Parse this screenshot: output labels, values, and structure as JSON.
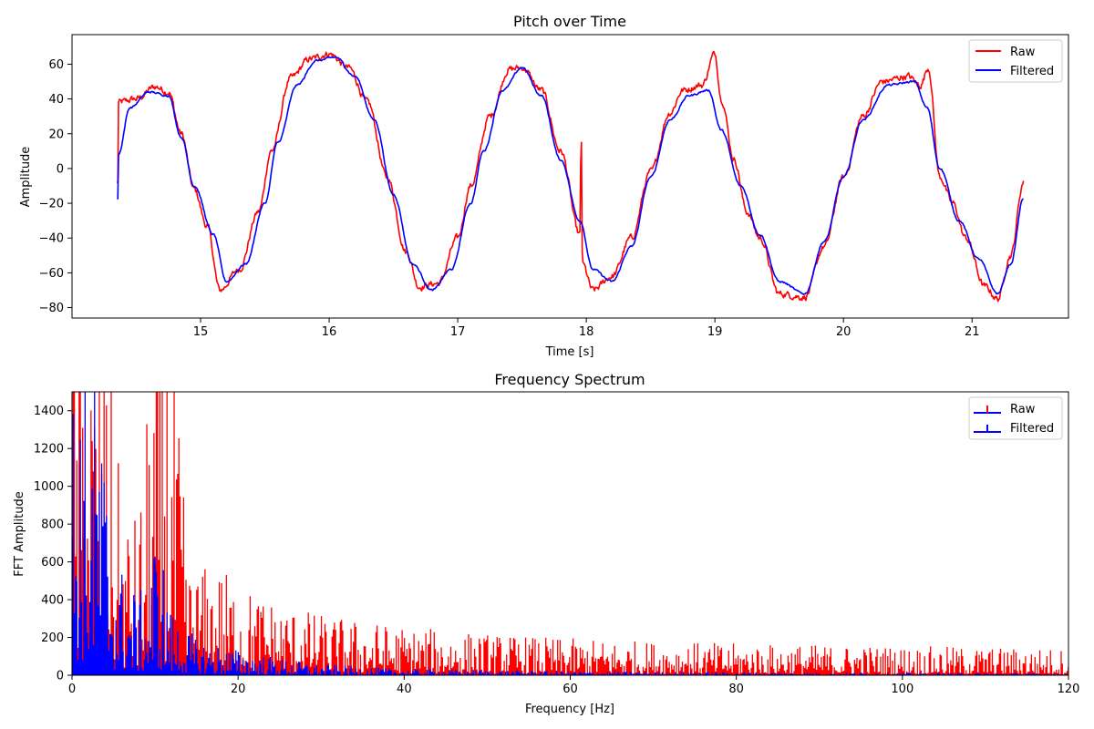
{
  "chart_data": [
    {
      "type": "line",
      "title": "Pitch over Time",
      "xlabel": "Time [s]",
      "ylabel": "Amplitude",
      "xlim": [
        14.0,
        21.75
      ],
      "ylim": [
        -86,
        77
      ],
      "xticks": [
        15,
        16,
        17,
        18,
        19,
        20,
        21
      ],
      "yticks": [
        -80,
        -60,
        -40,
        -20,
        0,
        20,
        40,
        60
      ],
      "x_start": 14.35,
      "x_end": 21.4,
      "grid": false,
      "legend_position": "top-right",
      "series": [
        {
          "name": "Raw",
          "color": "#ff0000",
          "points": [
            [
              14.36,
              38
            ],
            [
              14.5,
              40
            ],
            [
              14.65,
              47
            ],
            [
              14.75,
              44
            ],
            [
              14.85,
              20
            ],
            [
              14.95,
              -12
            ],
            [
              15.05,
              -33
            ],
            [
              15.15,
              -70
            ],
            [
              15.3,
              -58
            ],
            [
              15.45,
              -25
            ],
            [
              15.55,
              10
            ],
            [
              15.7,
              52
            ],
            [
              15.85,
              63
            ],
            [
              16.0,
              66
            ],
            [
              16.15,
              58
            ],
            [
              16.3,
              38
            ],
            [
              16.45,
              -5
            ],
            [
              16.6,
              -48
            ],
            [
              16.7,
              -68
            ],
            [
              16.85,
              -66
            ],
            [
              17.0,
              -40
            ],
            [
              17.1,
              -10
            ],
            [
              17.25,
              30
            ],
            [
              17.4,
              57
            ],
            [
              17.5,
              58
            ],
            [
              17.65,
              45
            ],
            [
              17.8,
              10
            ],
            [
              17.95,
              -38
            ],
            [
              17.96,
              22
            ],
            [
              17.97,
              -55
            ],
            [
              18.05,
              -70
            ],
            [
              18.2,
              -62
            ],
            [
              18.35,
              -40
            ],
            [
              18.5,
              -2
            ],
            [
              18.65,
              32
            ],
            [
              18.75,
              45
            ],
            [
              18.9,
              48
            ],
            [
              19.0,
              66
            ],
            [
              19.05,
              40
            ],
            [
              19.15,
              5
            ],
            [
              19.25,
              -25
            ],
            [
              19.35,
              -40
            ],
            [
              19.5,
              -72
            ],
            [
              19.7,
              -74
            ],
            [
              19.85,
              -45
            ],
            [
              20.0,
              -5
            ],
            [
              20.15,
              30
            ],
            [
              20.3,
              50
            ],
            [
              20.5,
              53
            ],
            [
              20.6,
              48
            ],
            [
              20.66,
              58
            ],
            [
              20.75,
              -5
            ],
            [
              20.85,
              -20
            ],
            [
              20.95,
              -40
            ],
            [
              21.1,
              -68
            ],
            [
              21.2,
              -75
            ],
            [
              21.3,
              -50
            ],
            [
              21.4,
              -8
            ]
          ]
        },
        {
          "name": "Filtered",
          "color": "#0000ff",
          "points": [
            [
              14.36,
              8
            ],
            [
              14.45,
              35
            ],
            [
              14.6,
              44
            ],
            [
              14.75,
              42
            ],
            [
              14.85,
              18
            ],
            [
              14.95,
              -10
            ],
            [
              15.1,
              -38
            ],
            [
              15.2,
              -65
            ],
            [
              15.35,
              -55
            ],
            [
              15.5,
              -20
            ],
            [
              15.6,
              15
            ],
            [
              15.75,
              48
            ],
            [
              15.9,
              62
            ],
            [
              16.05,
              64
            ],
            [
              16.2,
              53
            ],
            [
              16.35,
              28
            ],
            [
              16.5,
              -15
            ],
            [
              16.65,
              -55
            ],
            [
              16.8,
              -70
            ],
            [
              16.95,
              -58
            ],
            [
              17.1,
              -20
            ],
            [
              17.2,
              10
            ],
            [
              17.35,
              45
            ],
            [
              17.5,
              58
            ],
            [
              17.65,
              42
            ],
            [
              17.8,
              5
            ],
            [
              17.95,
              -30
            ],
            [
              18.05,
              -58
            ],
            [
              18.2,
              -65
            ],
            [
              18.35,
              -45
            ],
            [
              18.5,
              -5
            ],
            [
              18.65,
              28
            ],
            [
              18.8,
              42
            ],
            [
              18.95,
              45
            ],
            [
              19.05,
              22
            ],
            [
              19.2,
              -10
            ],
            [
              19.35,
              -38
            ],
            [
              19.5,
              -65
            ],
            [
              19.7,
              -72
            ],
            [
              19.85,
              -42
            ],
            [
              20.0,
              -5
            ],
            [
              20.15,
              28
            ],
            [
              20.35,
              48
            ],
            [
              20.55,
              50
            ],
            [
              20.65,
              35
            ],
            [
              20.75,
              0
            ],
            [
              20.9,
              -30
            ],
            [
              21.05,
              -52
            ],
            [
              21.2,
              -72
            ],
            [
              21.3,
              -55
            ],
            [
              21.4,
              -17
            ]
          ]
        }
      ]
    },
    {
      "type": "bar",
      "title": "Frequency Spectrum",
      "xlabel": "Frequency [Hz]",
      "ylabel": "FFT Amplitude",
      "xlim": [
        0,
        120
      ],
      "ylim": [
        0,
        1500
      ],
      "xticks": [
        0,
        20,
        40,
        60,
        80,
        100,
        120
      ],
      "yticks": [
        0,
        200,
        400,
        600,
        800,
        1000,
        1200,
        1400
      ],
      "grid": false,
      "legend_position": "top-right",
      "series": [
        {
          "name": "Raw",
          "color": "#ff0000",
          "envelope": [
            [
              0,
              1500
            ],
            [
              4,
              1500
            ],
            [
              6,
              700
            ],
            [
              8,
              650
            ],
            [
              10,
              1500
            ],
            [
              12,
              1500
            ],
            [
              14,
              450
            ],
            [
              18,
              450
            ],
            [
              20,
              380
            ],
            [
              25,
              300
            ],
            [
              30,
              250
            ],
            [
              40,
              200
            ],
            [
              50,
              170
            ],
            [
              60,
              150
            ],
            [
              80,
              130
            ],
            [
              100,
              120
            ],
            [
              120,
              110
            ]
          ]
        },
        {
          "name": "Filtered",
          "color": "#0000ff",
          "envelope": [
            [
              0,
              1500
            ],
            [
              3,
              1500
            ],
            [
              5,
              600
            ],
            [
              7,
              420
            ],
            [
              9,
              380
            ],
            [
              10,
              700
            ],
            [
              11,
              550
            ],
            [
              12,
              300
            ],
            [
              15,
              170
            ],
            [
              20,
              120
            ],
            [
              25,
              80
            ],
            [
              30,
              50
            ],
            [
              40,
              30
            ],
            [
              60,
              20
            ],
            [
              80,
              15
            ],
            [
              100,
              12
            ],
            [
              120,
              10
            ]
          ]
        }
      ]
    }
  ]
}
